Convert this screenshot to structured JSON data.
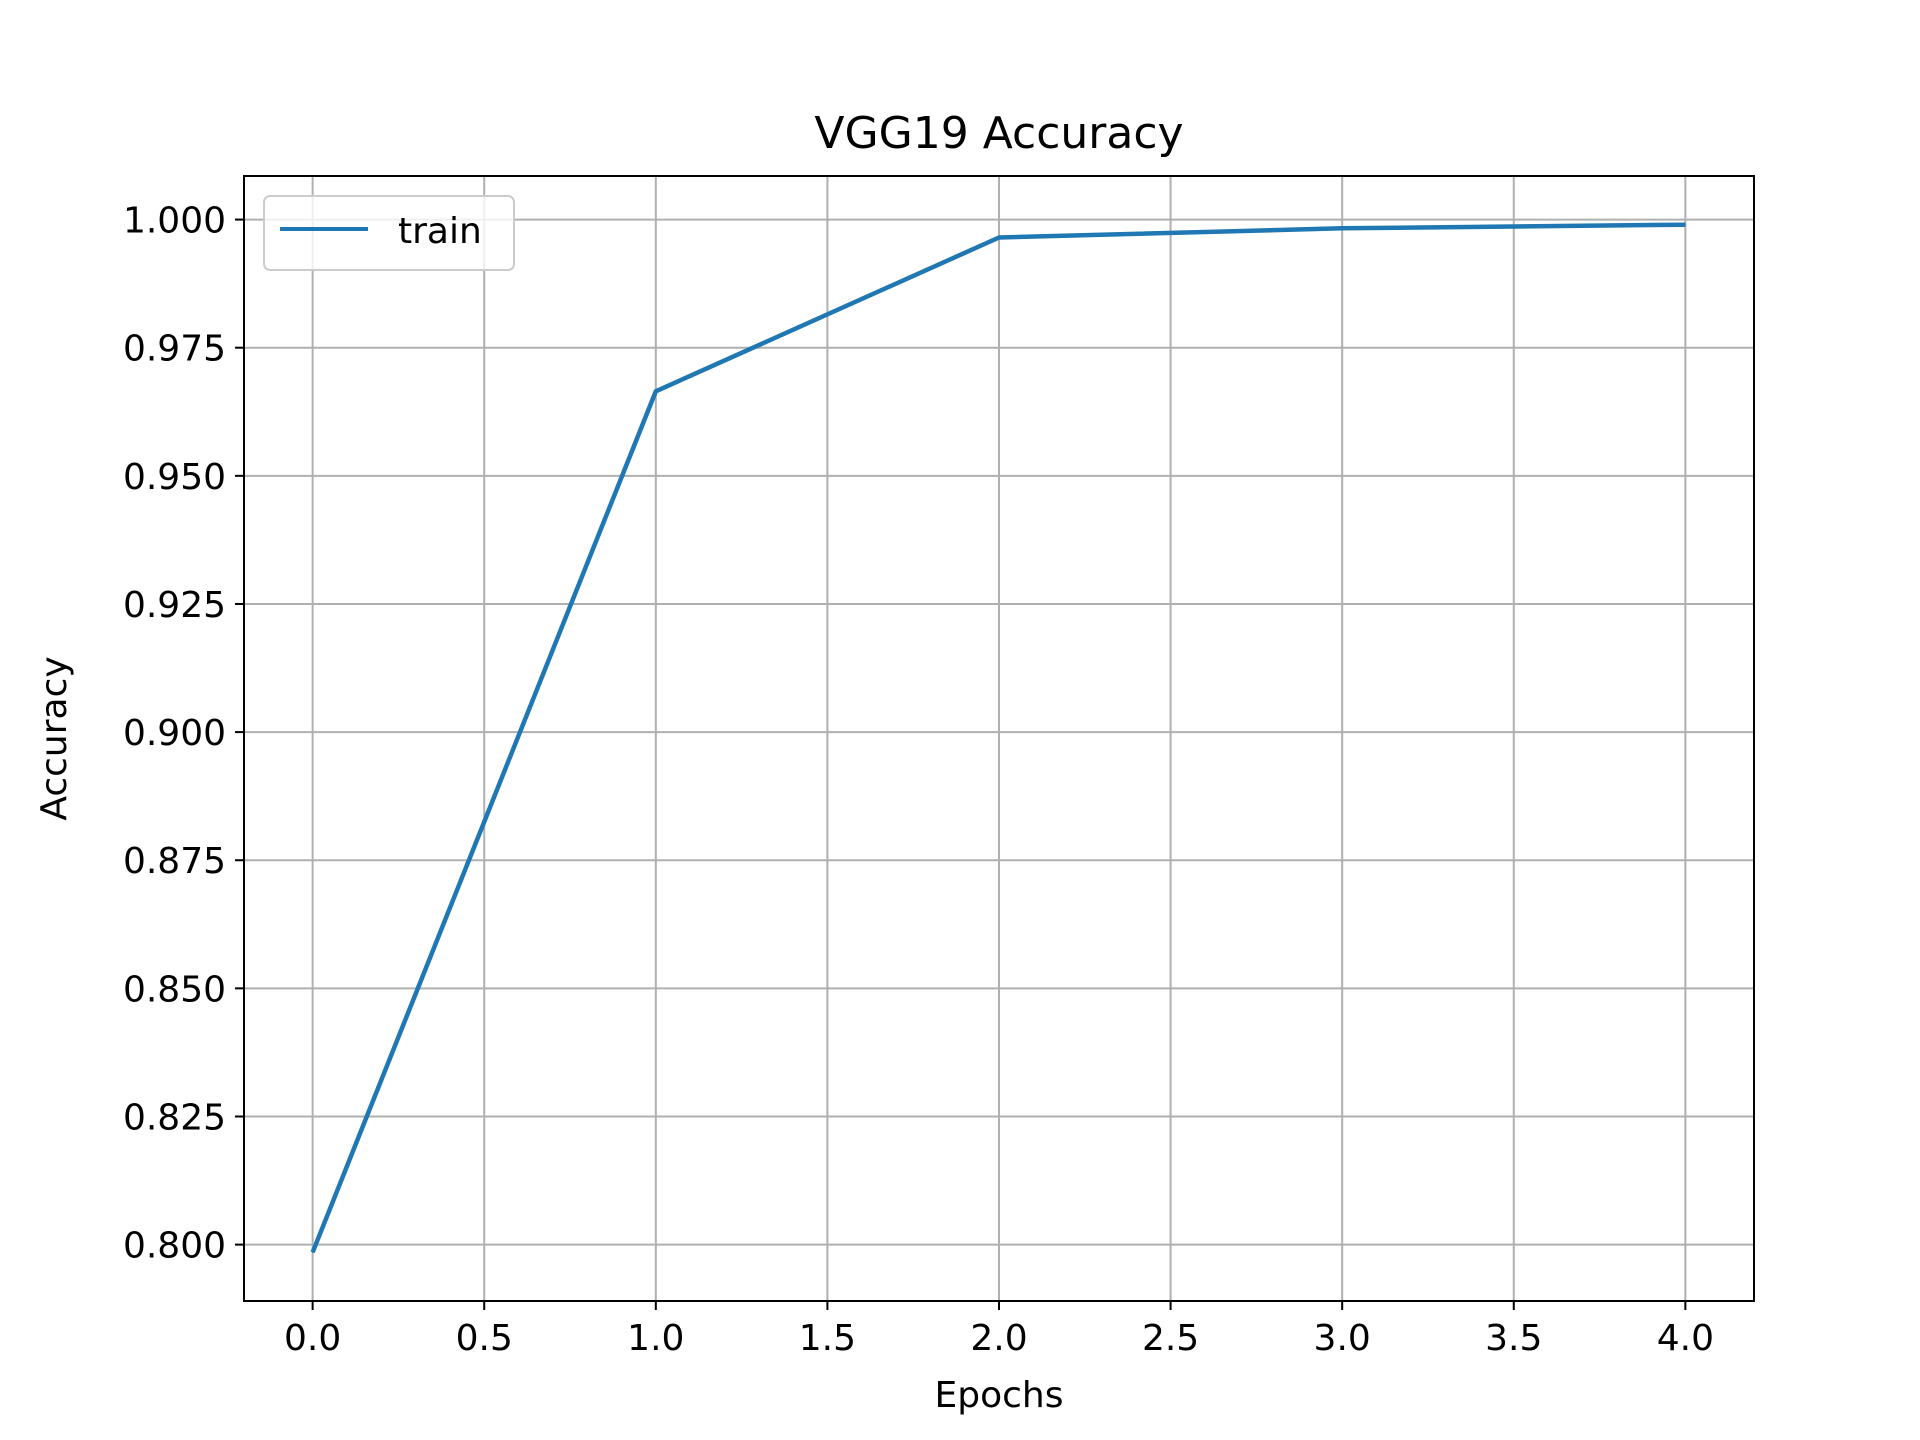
{
  "chart_data": {
    "type": "line",
    "title": "VGG19 Accuracy",
    "xlabel": "Epochs",
    "ylabel": "Accuracy",
    "xlim": [
      -0.2,
      4.2
    ],
    "ylim": [
      0.789,
      1.0085
    ],
    "xticks": [
      0.0,
      0.5,
      1.0,
      1.5,
      2.0,
      2.5,
      3.0,
      3.5,
      4.0
    ],
    "xtick_labels": [
      "0.0",
      "0.5",
      "1.0",
      "1.5",
      "2.0",
      "2.5",
      "3.0",
      "3.5",
      "4.0"
    ],
    "yticks": [
      0.8,
      0.825,
      0.85,
      0.875,
      0.9,
      0.925,
      0.95,
      0.975,
      1.0
    ],
    "ytick_labels": [
      "0.800",
      "0.825",
      "0.850",
      "0.875",
      "0.900",
      "0.925",
      "0.950",
      "0.975",
      "1.000"
    ],
    "grid": true,
    "legend_position": "top-left",
    "series": [
      {
        "name": "train",
        "color": "#1f77b4",
        "x": [
          0,
          1,
          2,
          3,
          4
        ],
        "values": [
          0.7985,
          0.9665,
          0.9965,
          0.9983,
          0.999
        ]
      }
    ]
  }
}
